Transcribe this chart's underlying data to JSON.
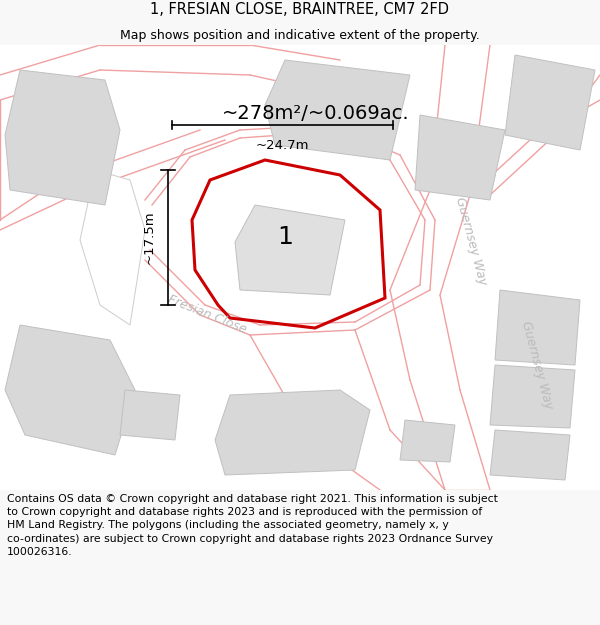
{
  "title": "1, FRESIAN CLOSE, BRAINTREE, CM7 2FD",
  "subtitle": "Map shows position and indicative extent of the property.",
  "footer_line1": "Contains OS data © Crown copyright and database right 2021. This information is subject",
  "footer_line2": "to Crown copyright and database rights 2023 and is reproduced with the permission of",
  "footer_line3": "HM Land Registry. The polygons (including the associated geometry, namely x, y",
  "footer_line4": "co-ordinates) are subject to Crown copyright and database rights 2023 Ordnance Survey",
  "footer_line5": "100026316.",
  "area_label": "~278m²/~0.069ac.",
  "width_label": "~24.7m",
  "height_label": "~17.5m",
  "plot_label": "1",
  "road_label_fresian": "Fresian Close",
  "road_label_gw1": "Guernsey Way",
  "road_label_gw2": "Guernsey Way",
  "bg_color": "#f8f8f8",
  "map_bg": "#ffffff",
  "main_plot_color": "#cc0000",
  "building_fill": "#d8d8d8",
  "building_edge": "#c0c0c0",
  "road_line_color": "#f0a0a0",
  "title_fontsize": 10.5,
  "subtitle_fontsize": 9,
  "footer_fontsize": 7.8,
  "area_fontsize": 14,
  "dim_fontsize": 9.5,
  "plot_num_fontsize": 18,
  "road_label_fontsize": 9
}
